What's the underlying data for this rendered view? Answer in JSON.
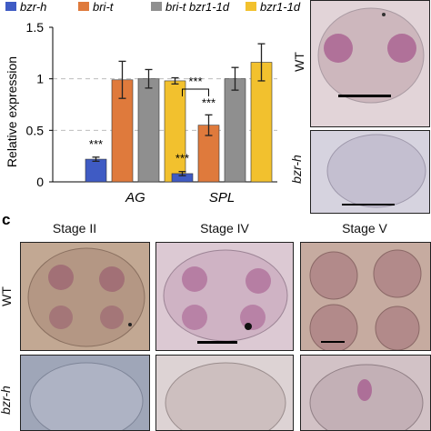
{
  "figure": {
    "panel_c_letter": "c",
    "stages": [
      "Stage II",
      "Stage IV",
      "Stage V"
    ],
    "row_labels": {
      "wt": "WT",
      "mutant": "bzr-h"
    },
    "side_row_labels": {
      "wt": "WT",
      "mutant": "bzr-h"
    },
    "colors": {
      "stain_pink": "#a55a8e",
      "tissue_wt": "#d8c2c6",
      "tissue_mutant": "#cbc7d7",
      "tissue_brown": "#b99a88"
    }
  },
  "chart_data": {
    "type": "bar",
    "ylabel": "Relative expression",
    "ylim": [
      0,
      1.5
    ],
    "yticks": [
      0,
      0.5,
      1,
      1.5
    ],
    "ytick_labels": [
      "0",
      "0.5",
      "1",
      "1.5"
    ],
    "grid": "dashed horizontal at 0.5, 1",
    "legend_placement": "top",
    "categories": [
      "AG",
      "SPL"
    ],
    "series": [
      {
        "name": "bzr-h",
        "color": "#3f5bc4",
        "values": [
          0.22,
          0.08
        ],
        "errors": [
          0.02,
          0.02
        ]
      },
      {
        "name": "bri-t",
        "color": "#df7a3c",
        "values": [
          0.99,
          0.55
        ],
        "errors": [
          0.18,
          0.1
        ]
      },
      {
        "name": "bri-t bzr1-1d",
        "color": "#8f8f8f",
        "values": [
          1.0,
          1.0
        ],
        "errors": [
          0.09,
          0.11
        ]
      },
      {
        "name": "bzr1-1d",
        "color": "#f2c12e",
        "values": [
          0.98,
          1.16
        ],
        "errors": [
          0.03,
          0.18
        ]
      }
    ],
    "annotations": [
      "***",
      "***",
      "***",
      "***"
    ]
  }
}
